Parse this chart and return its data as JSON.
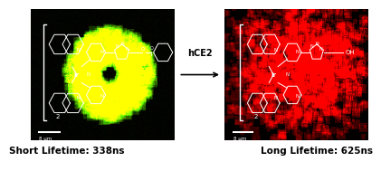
{
  "arrow_label": "hCE2",
  "left_label": "Short Lifetime: 338ns",
  "right_label": "Long Lifetime: 625ns",
  "scale_bar_label": "8 μm",
  "label_fontsize": 7.5,
  "label_fontweight": "bold",
  "arrow_fontsize": 7,
  "fig_bg": "#ffffff"
}
